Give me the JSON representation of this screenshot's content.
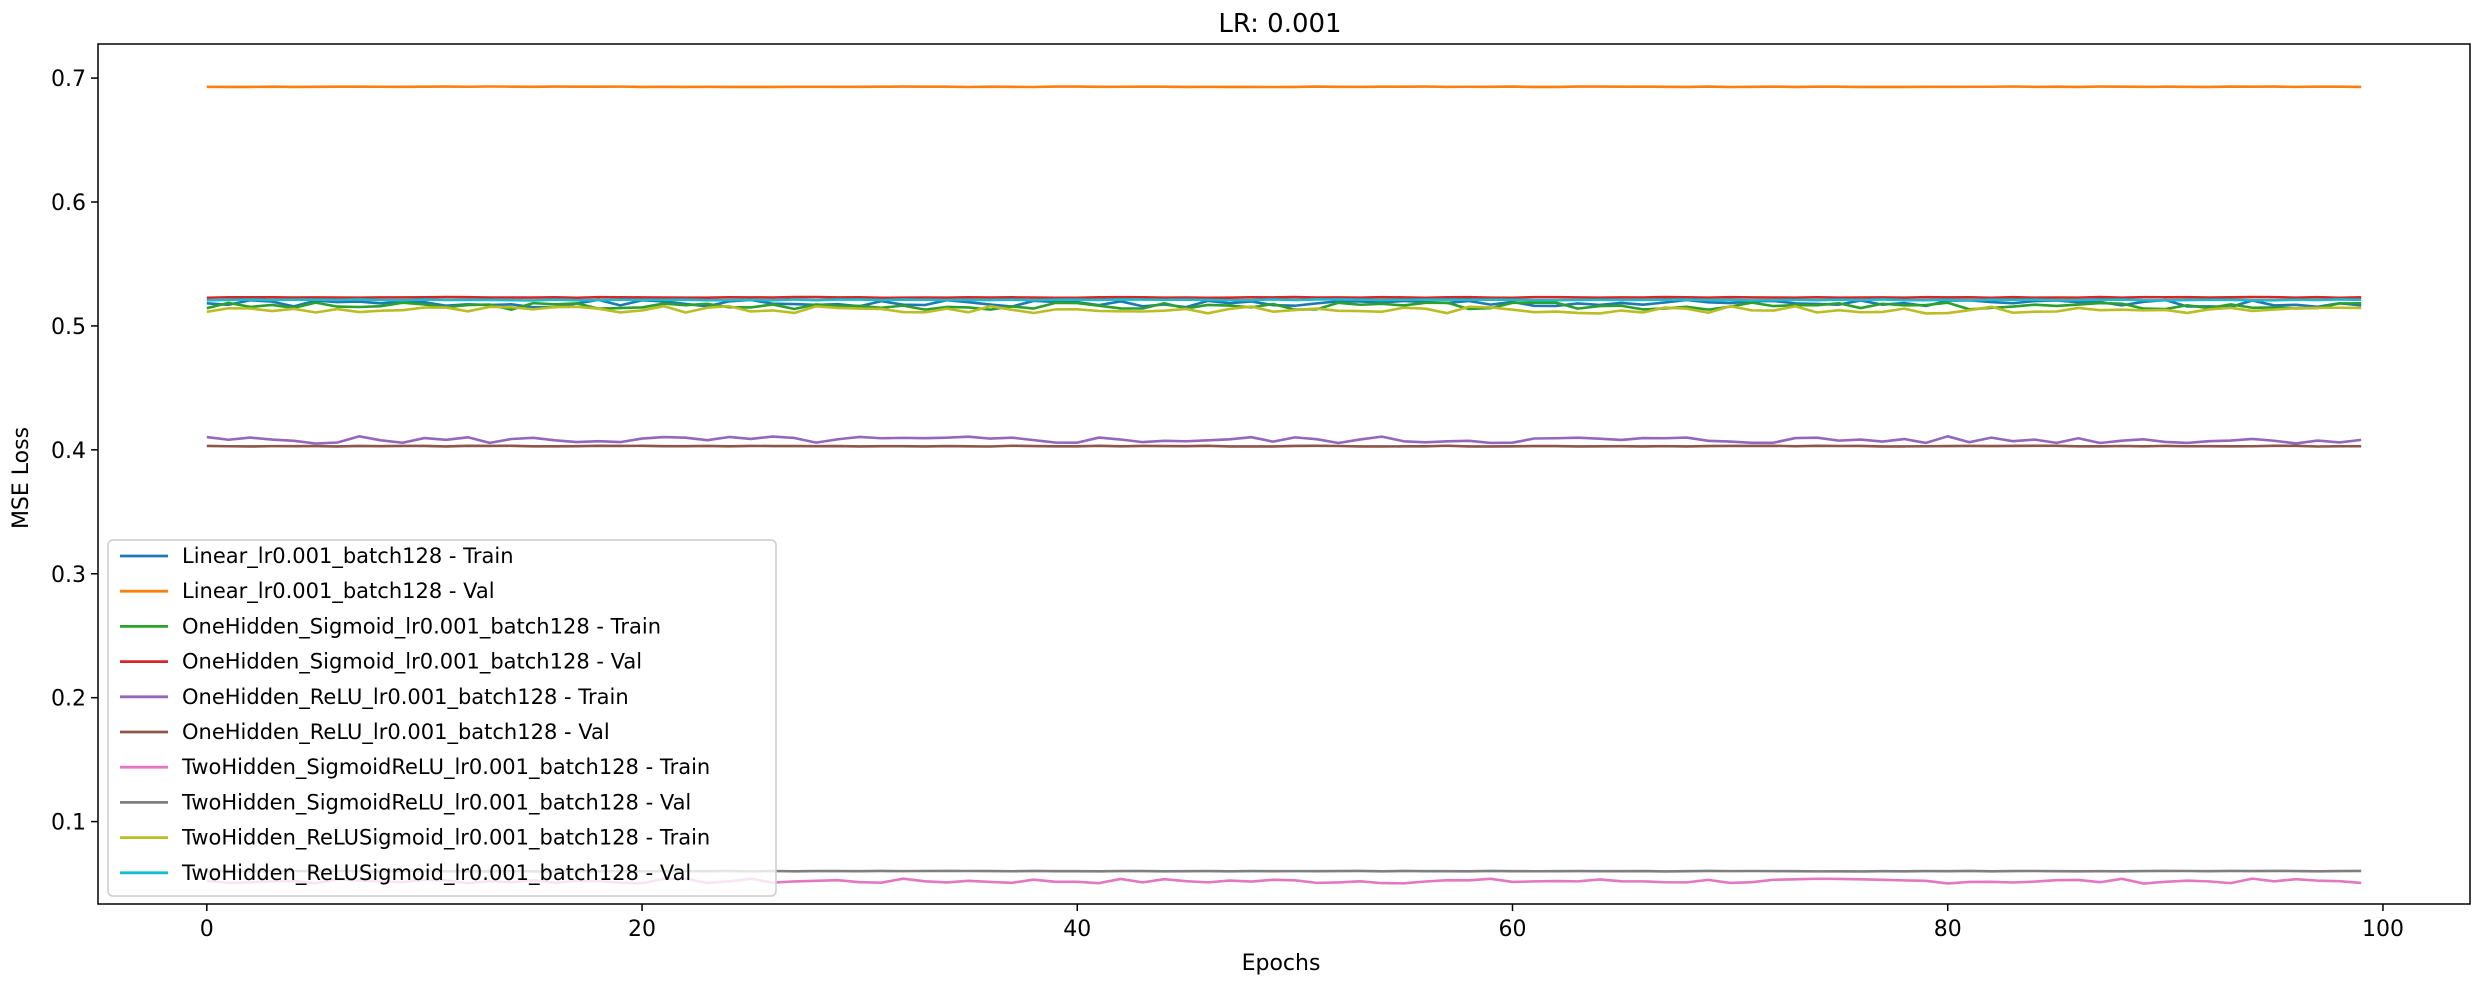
{
  "chart_data": {
    "type": "line",
    "title": "LR: 0.001",
    "xlabel": "Epochs",
    "ylabel": "MSE Loss",
    "xlim": [
      -5,
      104
    ],
    "ylim": [
      0.0335,
      0.7275
    ],
    "xticks": [
      0,
      20,
      40,
      60,
      80,
      100
    ],
    "yticks": [
      0.1,
      0.2,
      0.3,
      0.4,
      0.5,
      0.6,
      0.7
    ],
    "grid": false,
    "legend_position": "lower-left",
    "epochs": 100,
    "series": [
      {
        "name": "Linear_lr0.001_batch128 - Train",
        "color": "#1f77b4",
        "base": 0.518,
        "noise": 0.003,
        "seed": 1
      },
      {
        "name": "Linear_lr0.001_batch128 - Val",
        "color": "#ff7f0e",
        "base": 0.693,
        "noise": 0.0002,
        "seed": 2
      },
      {
        "name": "OneHidden_Sigmoid_lr0.001_batch128 - Train",
        "color": "#2ca02c",
        "base": 0.516,
        "noise": 0.003,
        "seed": 3
      },
      {
        "name": "OneHidden_Sigmoid_lr0.001_batch128 - Val",
        "color": "#d62728",
        "base": 0.523,
        "noise": 0.0003,
        "seed": 4
      },
      {
        "name": "OneHidden_ReLU_lr0.001_batch128 - Train",
        "color": "#9467bd",
        "base": 0.408,
        "noise": 0.003,
        "seed": 5
      },
      {
        "name": "OneHidden_ReLU_lr0.001_batch128 - Val",
        "color": "#8c564b",
        "base": 0.403,
        "noise": 0.0003,
        "seed": 6
      },
      {
        "name": "TwoHidden_SigmoidReLU_lr0.001_batch128 - Train",
        "color": "#e377c2",
        "base": 0.052,
        "noise": 0.002,
        "seed": 7
      },
      {
        "name": "TwoHidden_SigmoidReLU_lr0.001_batch128 - Val",
        "color": "#7f7f7f",
        "base": 0.06,
        "noise": 0.0002,
        "seed": 8
      },
      {
        "name": "TwoHidden_ReLUSigmoid_lr0.001_batch128 - Train",
        "color": "#bcbd22",
        "base": 0.513,
        "noise": 0.003,
        "seed": 9
      },
      {
        "name": "TwoHidden_ReLUSigmoid_lr0.001_batch128 - Val",
        "color": "#17becf",
        "base": 0.521,
        "noise": 0.0004,
        "seed": 10
      }
    ]
  }
}
